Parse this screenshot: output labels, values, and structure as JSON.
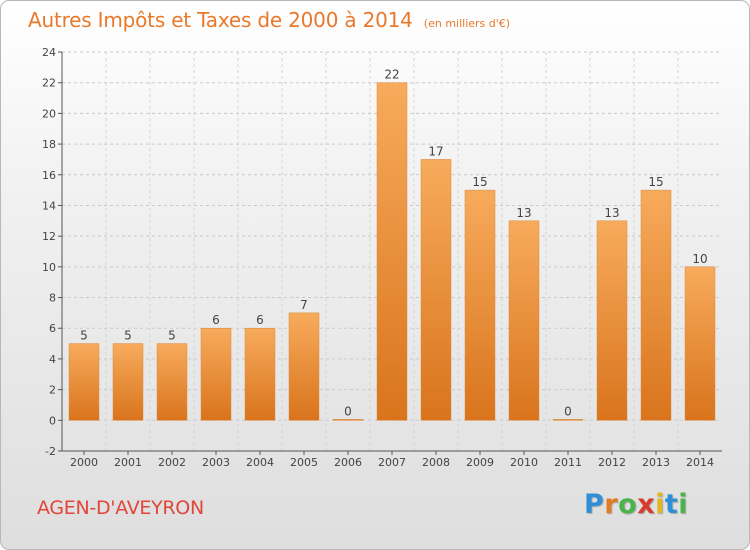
{
  "header": {
    "title": "Autres Impôts et Taxes de 2000 à 2014",
    "unit": "(en milliers d'€)"
  },
  "commune": "AGEN-D'AVEYRON",
  "logo": {
    "text": "Proxiti",
    "letters": [
      "P",
      "r",
      "o",
      "x",
      "i",
      "t",
      "i"
    ],
    "letter_colors": [
      "#2f8fd6",
      "#e07b1f",
      "#4bb34b",
      "#d93a2b",
      "#e0b720",
      "#2f8fd6",
      "#4bb34b"
    ]
  },
  "colors": {
    "title": "#e8792a",
    "commune": "#e0463a",
    "bar_light": "#f7ab5c",
    "bar_dark": "#d9741c"
  },
  "chart_data": {
    "type": "bar",
    "title": "Autres Impôts et Taxes de 2000 à 2014",
    "subtitle": "(en milliers d'€)",
    "categories": [
      "2000",
      "2001",
      "2002",
      "2003",
      "2004",
      "2005",
      "2006",
      "2007",
      "2008",
      "2009",
      "2010",
      "2011",
      "2012",
      "2013",
      "2014"
    ],
    "values": [
      5,
      5,
      5,
      6,
      6,
      7,
      0,
      22,
      17,
      15,
      13,
      0,
      13,
      15,
      10
    ],
    "value_labels": [
      "5",
      "5",
      "5",
      "6",
      "6",
      "7",
      "0",
      "22",
      "17",
      "15",
      "13",
      "0",
      "13",
      "15",
      "10"
    ],
    "ylim": [
      -2,
      24
    ],
    "yticks": [
      -2,
      0,
      2,
      4,
      6,
      8,
      10,
      12,
      14,
      16,
      18,
      20,
      22,
      24
    ],
    "ytick_labels": [
      "-2",
      "0",
      "2",
      "4",
      "6",
      "8",
      "10",
      "12",
      "14",
      "16",
      "18",
      "20",
      "22",
      "24"
    ],
    "grid": "horizontal dashed",
    "legend": "none"
  }
}
